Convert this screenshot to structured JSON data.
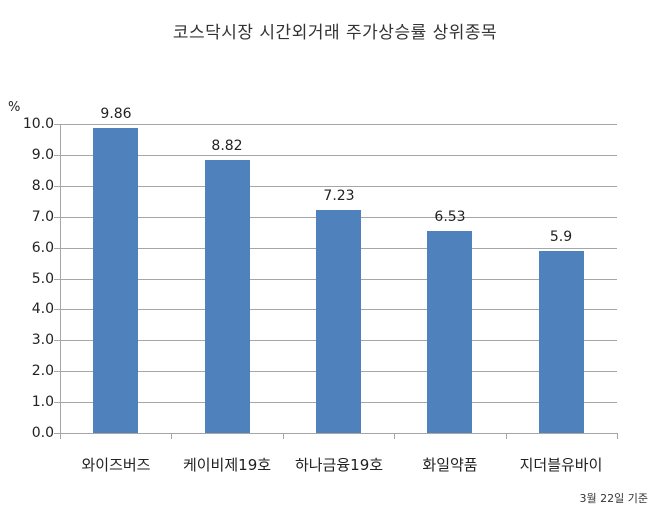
{
  "chart_data": {
    "type": "bar",
    "title": "코스닥시장 시간외거래  주가상승률 상위종목",
    "xlabel": "",
    "ylabel": "%",
    "categories": [
      "와이즈버즈",
      "케이비제19호",
      "하나금융19호",
      "화일약품",
      "지더블유바이"
    ],
    "values": [
      9.86,
      8.82,
      7.23,
      6.53,
      5.9
    ],
    "value_labels": [
      "9.86",
      "8.82",
      "7.23",
      "6.53",
      "5.9"
    ],
    "ylim": [
      0,
      10
    ],
    "yticks": [
      "0.0",
      "1.0",
      "2.0",
      "3.0",
      "4.0",
      "5.0",
      "6.0",
      "7.0",
      "8.0",
      "9.0",
      "10.0"
    ],
    "grid": true,
    "legend": "none",
    "bar_color": "#4f81bd",
    "annotation": "3월 22일 기준"
  },
  "header": {
    "title": "코스닥시장 시간외거래  주가상승률 상위종목"
  },
  "axis": {
    "unit": "%"
  },
  "footer": {
    "note": "3월 22일 기준"
  }
}
